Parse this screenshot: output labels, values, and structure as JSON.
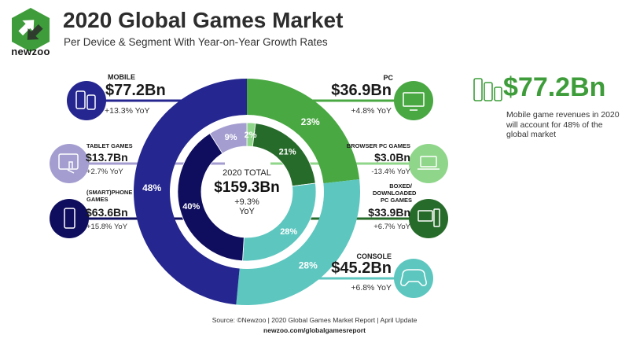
{
  "brand": "newzoo",
  "title": "2020 Global Games Market",
  "subtitle": "Per Device & Segment With Year-on-Year Growth Rates",
  "center": {
    "head": "2020 TOTAL",
    "value": "$159.3Bn",
    "yoy": "+9.3%",
    "yoy_suffix": "YoY"
  },
  "callout": {
    "value": "$77.2Bn",
    "text": "Mobile game revenues in 2020 will account for 48% of the global market"
  },
  "source": "Source: ©Newzoo | 2020 Global Games Market Report | April Update",
  "source_url": "newzoo.com/globalgamesreport",
  "labels": {
    "mobile": {
      "name": "MOBILE",
      "value": "$77.2Bn",
      "yoy": "+13.3% YoY"
    },
    "tablet": {
      "name": "TABLET GAMES",
      "value": "$13.7Bn",
      "yoy": "+2.7% YoY"
    },
    "phone": {
      "name": "(SMART)PHONE GAMES",
      "value": "$63.6Bn",
      "yoy": "+15.8% YoY"
    },
    "pc": {
      "name": "PC",
      "value": "$36.9Bn",
      "yoy": "+4.8% YoY"
    },
    "browser": {
      "name": "BROWSER PC GAMES",
      "value": "$3.0Bn",
      "yoy": "-13.4% YoY"
    },
    "boxed": {
      "name": "BOXED/ DOWNLOADED PC GAMES",
      "value": "$33.9Bn",
      "yoy": "+6.7% YoY"
    },
    "console": {
      "name": "CONSOLE",
      "value": "$45.2Bn",
      "yoy": "+6.8% YoY"
    }
  },
  "colors": {
    "mobile": "#25268f",
    "pc": "#4aa843",
    "console": "#5dc6bf",
    "tablet": "#a49ed0",
    "phone": "#0f0d5e",
    "browser": "#8fd68a",
    "boxed": "#276b2a",
    "brand_green": "#3e9d3a"
  },
  "chart_data": [
    {
      "type": "pie",
      "name": "outer ring",
      "categories": [
        "PC",
        "Console",
        "Mobile"
      ],
      "values": [
        23,
        28,
        48
      ],
      "value_labels": [
        "23%",
        "28%",
        "48%"
      ],
      "revenue": [
        "$36.9Bn",
        "$45.2Bn",
        "$77.2Bn"
      ]
    },
    {
      "type": "pie",
      "name": "inner ring",
      "categories": [
        "Browser PC Games",
        "Boxed/Downloaded PC Games",
        "Console",
        "(Smart)phone Games",
        "Tablet Games"
      ],
      "values": [
        2,
        21,
        28,
        40,
        9
      ],
      "value_labels": [
        "2%",
        "21%",
        "28%",
        "40%",
        "9%"
      ]
    }
  ]
}
